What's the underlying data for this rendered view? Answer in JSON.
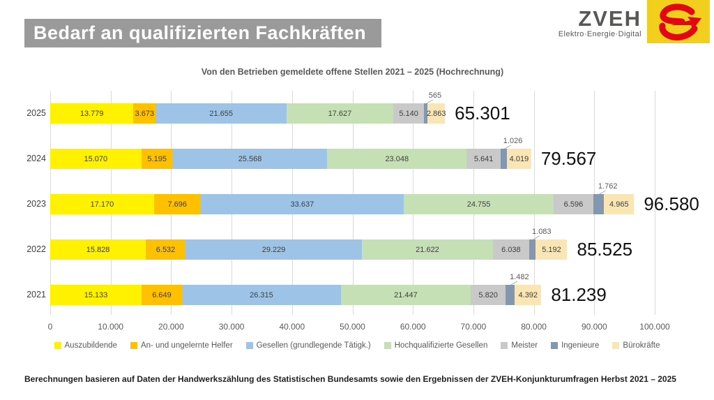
{
  "header": {
    "title": "Bedarf an qualifizierten Fachkräften",
    "title_bg_color": "#9a9a9a"
  },
  "logo": {
    "brand": "ZVEH",
    "tagline": "Elektro·Energie·Digital",
    "mark_bg_color": "#f2cf1c",
    "mark_color": "#e30613"
  },
  "chart_data": {
    "type": "bar",
    "orientation": "horizontal-stacked",
    "title": "Von den Betrieben gemeldete offene Stellen 2021 – 2025 (Hochrechnung)",
    "categories": [
      "2025",
      "2024",
      "2023",
      "2022",
      "2021"
    ],
    "series": [
      {
        "name": "Auszubildende",
        "color": "#fff100",
        "values": [
          13779,
          15070,
          17170,
          15828,
          15133
        ],
        "labels": [
          "13.779",
          "15.070",
          "17.170",
          "15.828",
          "15.133"
        ]
      },
      {
        "name": "An- und ungelernte Helfer",
        "color": "#ffc000",
        "values": [
          3673,
          5195,
          7696,
          6532,
          6649
        ],
        "labels": [
          "3.673",
          "5.195",
          "7.696",
          "6.532",
          "6.649"
        ]
      },
      {
        "name": "Gesellen (grundlegende Tätigk.)",
        "color": "#9dc3e6",
        "values": [
          21655,
          25568,
          33637,
          29229,
          26315
        ],
        "labels": [
          "21.655",
          "25.568",
          "33.637",
          "29.229",
          "26.315"
        ]
      },
      {
        "name": "Hochqualifizierte Gesellen",
        "color": "#c5e0b4",
        "values": [
          17627,
          23048,
          24755,
          21622,
          21447
        ],
        "labels": [
          "17.627",
          "23.048",
          "24.755",
          "21.622",
          "21.447"
        ]
      },
      {
        "name": "Meister",
        "color": "#c9c9c9",
        "values": [
          5140,
          5641,
          6596,
          6038,
          5820
        ],
        "labels": [
          "5.140",
          "5.641",
          "6.596",
          "6.038",
          "5.820"
        ]
      },
      {
        "name": "Ingenieure",
        "color": "#8497b0",
        "label_placement": "callout",
        "values": [
          565,
          1026,
          1762,
          1083,
          1482
        ],
        "labels": [
          "565",
          "1.026",
          "1.762",
          "1.083",
          "1.482"
        ]
      },
      {
        "name": "Bürokräfte",
        "color": "#fae5b4",
        "values": [
          2863,
          4019,
          4965,
          5192,
          4392
        ],
        "labels": [
          "2.863",
          "4.019",
          "4.965",
          "5.192",
          "4.392"
        ]
      }
    ],
    "totals": [
      "65.301",
      "79.567",
      "96.580",
      "85.525",
      "81.239"
    ],
    "totals_values": [
      65301,
      79567,
      96580,
      85525,
      81239
    ],
    "x_ticks": [
      "0",
      "10.000",
      "20.000",
      "30.000",
      "40.000",
      "50.000",
      "60.000",
      "70.000",
      "80.000",
      "90.000",
      "100.000"
    ],
    "xlim": [
      0,
      100000
    ],
    "grid": true,
    "legend_position": "bottom"
  },
  "footer": {
    "text": "Berechnungen basieren auf Daten der Handwerkszählung des Statistischen Bundesamts sowie den Ergebnissen der ZVEH-Konjunkturumfragen Herbst 2021 – 2025"
  }
}
